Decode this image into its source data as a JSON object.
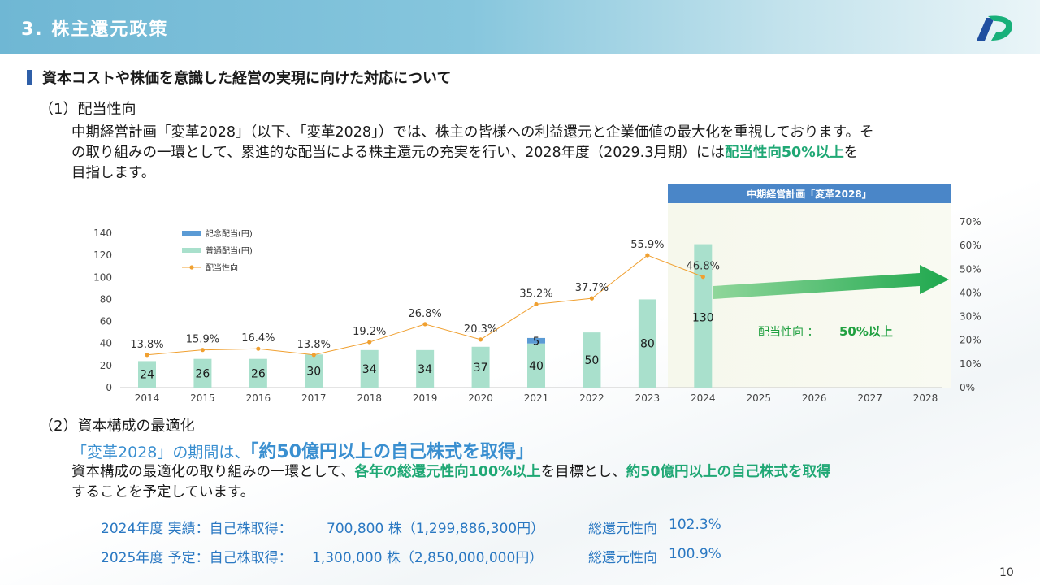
{
  "header": {
    "title": "3. 株主還元政策"
  },
  "section": {
    "heading": "資本コストや株価を意識した経営の実現に向けた対応について"
  },
  "part1": {
    "heading": "（1）配当性向",
    "line1": "中期経営計画「変革2028」（以下、「変革2028」）では、株主の皆様への利益還元と企業価値の最大化を重視しております。そ",
    "line2_pre": "の取り組みの一環として、累進的な配当による株主還元の充実を行い、2028年度（2029.3月期）には",
    "line2_hl": "配当性向50%以上",
    "line2_post": "を",
    "line3": "目指します。"
  },
  "chart_data": {
    "type": "bar",
    "categories": [
      "2014",
      "2015",
      "2016",
      "2017",
      "2018",
      "2019",
      "2020",
      "2021",
      "2022",
      "2023",
      "2024",
      "2025",
      "2026",
      "2027",
      "2028"
    ],
    "series": [
      {
        "name": "記念配当(円)",
        "values": [
          null,
          null,
          null,
          null,
          null,
          null,
          null,
          5,
          null,
          null,
          null,
          null,
          null,
          null,
          null
        ],
        "color": "#5b9bd5"
      },
      {
        "name": "普通配当(円)",
        "values": [
          24,
          26,
          26,
          30,
          34,
          34,
          37,
          40,
          50,
          80,
          130,
          null,
          null,
          null,
          null
        ],
        "color": "#a9e0cc"
      },
      {
        "name": "配当性向",
        "type": "line",
        "values": [
          13.8,
          15.9,
          16.4,
          13.8,
          19.2,
          26.8,
          20.3,
          35.2,
          37.7,
          55.9,
          46.8,
          null,
          null,
          null,
          null
        ],
        "color": "#f0a030"
      }
    ],
    "point_labels": [
      "13.8%",
      "15.9%",
      "16.4%",
      "13.8%",
      "19.2%",
      "26.8%",
      "20.3%",
      "35.2%",
      "37.7%",
      "55.9%",
      "46.8%"
    ],
    "left_ticks": [
      "0",
      "20",
      "40",
      "60",
      "80",
      "100",
      "120",
      "140"
    ],
    "right_ticks": [
      "0%",
      "10%",
      "20%",
      "30%",
      "40%",
      "50%",
      "60%",
      "70%"
    ],
    "ylim": [
      0,
      140
    ],
    "y2lim": [
      0,
      70
    ],
    "plan_banner": "中期経営計画「変革2028」",
    "target_label": "配当性向 ：",
    "target_value": "50%以上",
    "legend_position": "top-left"
  },
  "part2": {
    "heading": "（2）資本構成の最適化",
    "lead_pre": "「変革2028」の期間は、",
    "lead_strong": "「約50億円以上の自己株式を取得」",
    "body1_a": "資本構成の最適化の取り組みの一環として、",
    "body1_b": "各年の総還元性向100%以上",
    "body1_c": "を目標とし、",
    "body1_d": "約50億円以上の自己株式を取得",
    "body2": "することを予定しています。",
    "rows": [
      {
        "label": "2024年度 実績：自己株取得：",
        "shares": "700,800 株（1,299,886,300円）",
        "ratio_label": "総還元性向",
        "ratio": "102.3%"
      },
      {
        "label": "2025年度 予定：自己株取得：",
        "shares": "1,300,000 株（2,850,000,000円）",
        "ratio_label": "総還元性向",
        "ratio": "100.9%"
      }
    ]
  },
  "page_number": "10"
}
